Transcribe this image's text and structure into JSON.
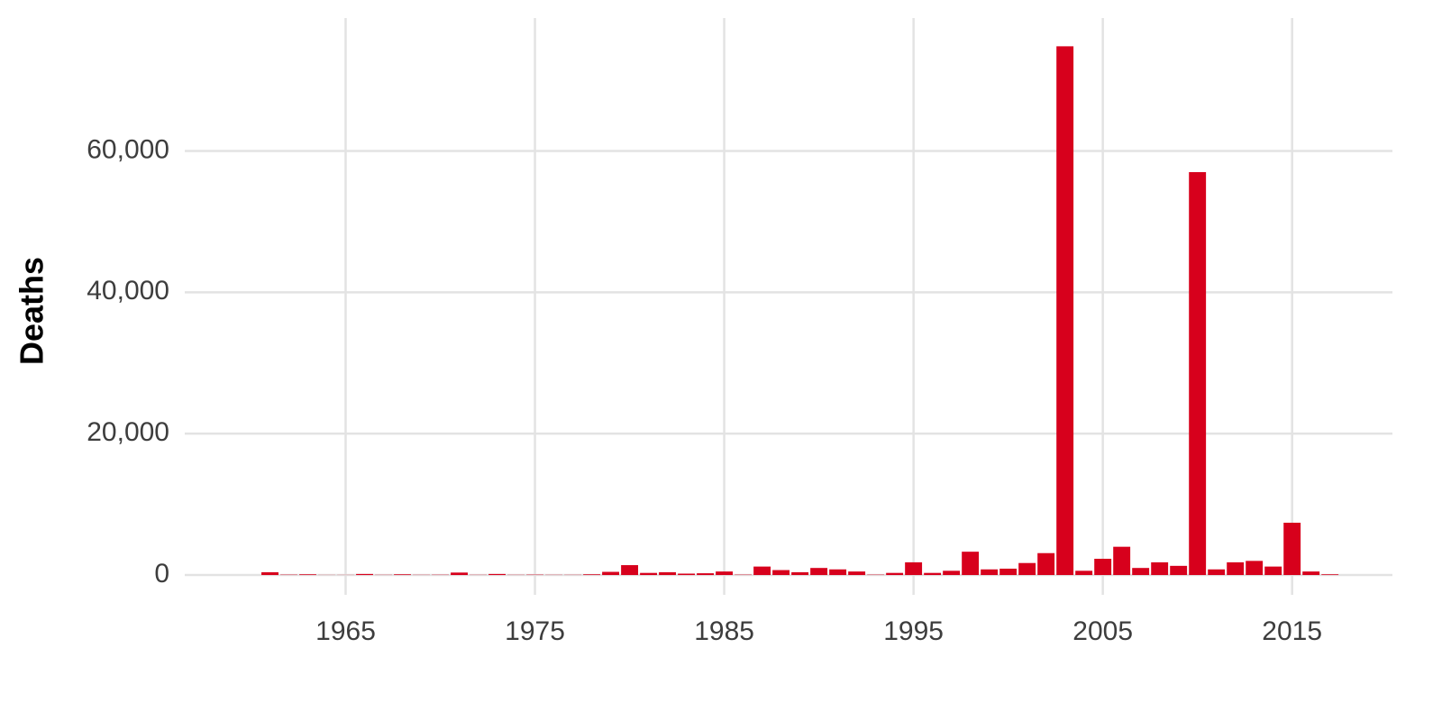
{
  "chart_data": {
    "type": "bar",
    "ylabel": "Deaths",
    "color": "#d7001c",
    "grid": true,
    "x": [
      1960,
      1961,
      1962,
      1963,
      1964,
      1965,
      1966,
      1967,
      1968,
      1969,
      1970,
      1971,
      1972,
      1973,
      1974,
      1975,
      1976,
      1977,
      1978,
      1979,
      1980,
      1981,
      1982,
      1983,
      1984,
      1985,
      1986,
      1987,
      1988,
      1989,
      1990,
      1991,
      1992,
      1993,
      1994,
      1995,
      1996,
      1997,
      1998,
      1999,
      2000,
      2001,
      2002,
      2003,
      2004,
      2005,
      2006,
      2007,
      2008,
      2009,
      2010,
      2011,
      2012,
      2013,
      2014,
      2015,
      2016,
      2017
    ],
    "values": [
      0,
      400,
      50,
      100,
      20,
      20,
      150,
      30,
      100,
      30,
      40,
      350,
      30,
      150,
      30,
      50,
      30,
      30,
      100,
      450,
      1400,
      300,
      400,
      200,
      250,
      500,
      50,
      1200,
      700,
      400,
      1000,
      800,
      500,
      50,
      300,
      1800,
      300,
      600,
      3300,
      800,
      900,
      1700,
      3100,
      74800,
      600,
      2300,
      4000,
      1000,
      1800,
      1300,
      57000,
      800,
      1800,
      2000,
      1200,
      7400,
      500,
      100
    ],
    "xlim": [
      1956.5,
      2020.3
    ],
    "ylim": [
      -2800,
      78800
    ],
    "xticks": [
      1965,
      1975,
      1985,
      1995,
      2005,
      2015
    ],
    "yticks": [
      0,
      {
        "value": 20000,
        "label": "20,000"
      },
      {
        "value": 40000,
        "label": "40,000"
      },
      {
        "value": 60000,
        "label": "60,000"
      }
    ]
  }
}
